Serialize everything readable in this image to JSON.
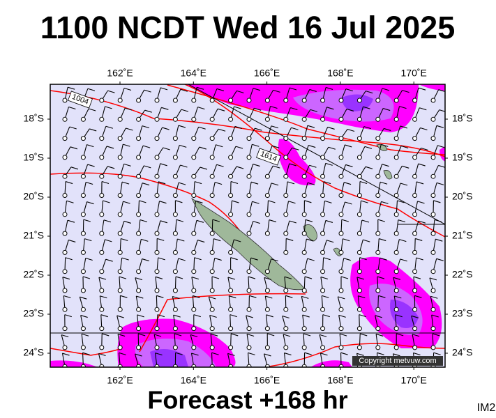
{
  "header": {
    "title": "1100 NCDT Wed 16 Jul 2025"
  },
  "map": {
    "lon_labels": [
      "162˚E",
      "164˚E",
      "166˚E",
      "168˚E",
      "170˚E"
    ],
    "lat_labels": [
      "18˚S",
      "19˚S",
      "20˚S",
      "21˚S",
      "22˚S",
      "23˚S",
      "24˚S"
    ],
    "isobar_labels": [
      "1004",
      "1614"
    ],
    "copyright": "Copyright metvuw.com"
  },
  "footer": {
    "forecast": "Forecast +168 hr",
    "code": "IM2"
  }
}
